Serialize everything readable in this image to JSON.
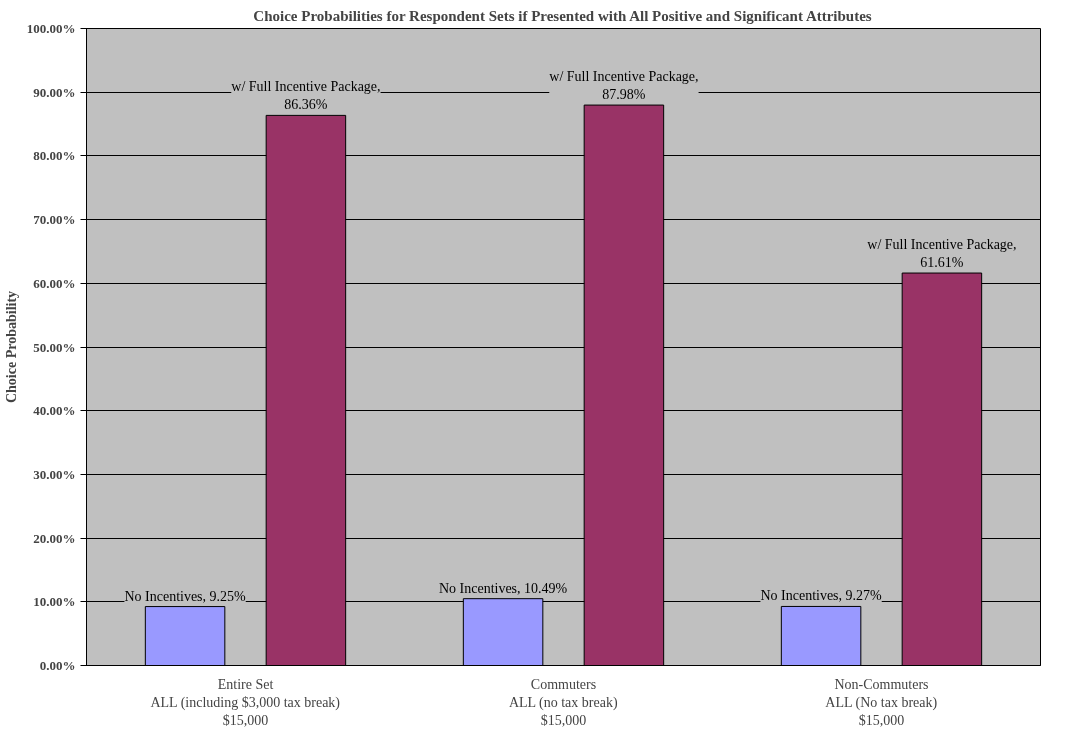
{
  "chart_data": {
    "type": "bar",
    "title": "Choice Probabilities for Respondent Sets if Presented with All Positive and Significant Attributes",
    "ylabel": "Choice Probability",
    "categories": [
      "Entire Set\nALL (including $3,000 tax break)\n$15,000",
      "Commuters\nALL (no tax break)\n$15,000",
      "Non-Commuters\nALL (No tax break)\n$15,000"
    ],
    "series": [
      {
        "color": "#9999ff",
        "values": [
          9.25,
          10.49,
          9.27
        ],
        "value_labels": [
          "No Incentives, 9.25%",
          "No Incentives, 10.49%",
          "No Incentives, 9.27%"
        ]
      },
      {
        "color": "#993366",
        "values": [
          86.36,
          87.98,
          61.61
        ],
        "value_labels": [
          "w/ Full Incentive Package,\n86.36%",
          "w/ Full Incentive Package,\n87.98%",
          "w/ Full Incentive Package,\n61.61%"
        ]
      }
    ],
    "ylim": [
      0,
      100
    ],
    "yticks": [
      {
        "value": 0,
        "label": "0.00%"
      },
      {
        "value": 10,
        "label": "10.00%"
      },
      {
        "value": 20,
        "label": "20.00%"
      },
      {
        "value": 30,
        "label": "30.00%"
      },
      {
        "value": 40,
        "label": "40.00%"
      },
      {
        "value": 50,
        "label": "50.00%"
      },
      {
        "value": 60,
        "label": "60.00%"
      },
      {
        "value": 70,
        "label": "70.00%"
      },
      {
        "value": 80,
        "label": "80.00%"
      },
      {
        "value": 90,
        "label": "90.00%"
      },
      {
        "value": 100,
        "label": "100.00%"
      }
    ],
    "grid": "y"
  }
}
